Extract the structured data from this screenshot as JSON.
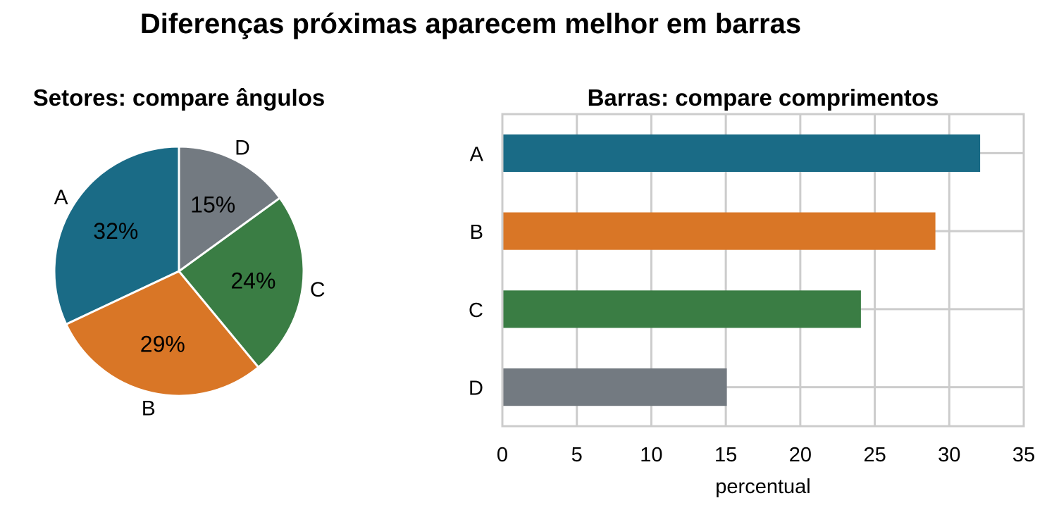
{
  "figure": {
    "title": "Diferenças próximas aparecem melhor em barras"
  },
  "chart_data": [
    {
      "type": "pie",
      "title": "Setores: compare ângulos",
      "categories": [
        "A",
        "B",
        "C",
        "D"
      ],
      "values": [
        32,
        29,
        24,
        15
      ],
      "value_labels": [
        "32%",
        "29%",
        "24%",
        "15%"
      ],
      "colors": [
        "#1a6b86",
        "#d97626",
        "#3a7d44",
        "#737a81"
      ],
      "start_angle_deg": 90,
      "direction": "counterclockwise"
    },
    {
      "type": "bar",
      "orientation": "horizontal",
      "title": "Barras: compare comprimentos",
      "categories": [
        "A",
        "B",
        "C",
        "D"
      ],
      "values": [
        32,
        29,
        24,
        15
      ],
      "colors": [
        "#1a6b86",
        "#d97626",
        "#3a7d44",
        "#737a81"
      ],
      "xlabel": "percentual",
      "ylabel": "",
      "xlim": [
        0,
        35
      ],
      "xticks": [
        0,
        5,
        10,
        15,
        20,
        25,
        30,
        35
      ],
      "grid": true
    }
  ]
}
